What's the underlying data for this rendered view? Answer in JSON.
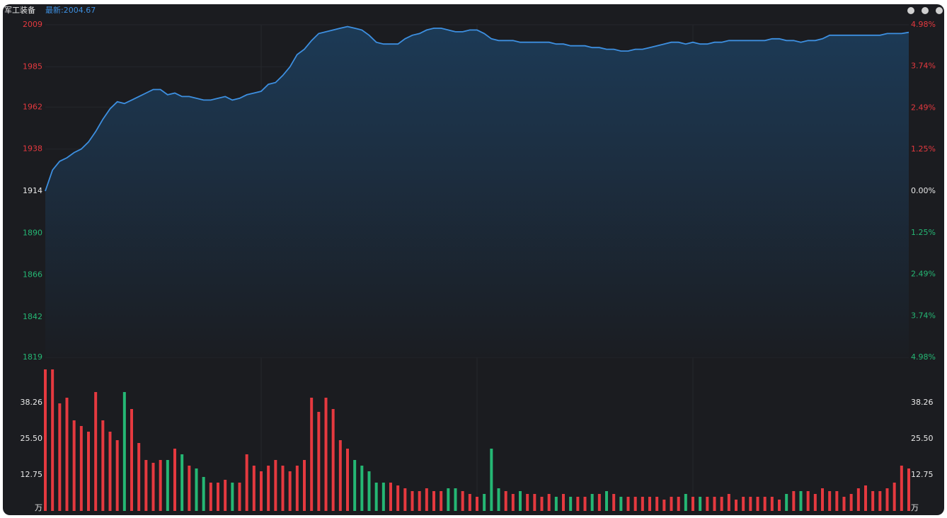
{
  "header": {
    "name": "军工装备",
    "latest": "最新:2004.67"
  },
  "chart_data": [
    {
      "type": "line",
      "color": "#3d8fe0",
      "up_color": "#e5393f",
      "down_color": "#25b774",
      "flat_color": "#e8e8e8",
      "ylim": [
        1819,
        2009
      ],
      "yticks": [
        2009,
        1985,
        1962,
        1938,
        1914,
        1890,
        1866,
        1842,
        1819
      ],
      "y2lim": [
        -4.98,
        4.98
      ],
      "y2ticks": [
        {
          "value": 4.98,
          "label": "4.98%"
        },
        {
          "value": 3.74,
          "label": "3.74%"
        },
        {
          "value": 2.49,
          "label": "2.49%"
        },
        {
          "value": 1.25,
          "label": "1.25%"
        },
        {
          "value": 0,
          "label": "0.00%"
        },
        {
          "value": -1.25,
          "label": "1.25%"
        },
        {
          "value": -2.49,
          "label": "2.49%"
        },
        {
          "value": -3.74,
          "label": "3.74%"
        },
        {
          "value": -4.98,
          "label": "4.98%"
        }
      ],
      "values": [
        1914,
        1926,
        1931,
        1933,
        1936,
        1938,
        1942,
        1948,
        1955,
        1961,
        1965,
        1964,
        1966,
        1968,
        1970,
        1972,
        1972,
        1969,
        1970,
        1968,
        1968,
        1967,
        1966,
        1966,
        1967,
        1968,
        1966,
        1967,
        1969,
        1970,
        1971,
        1975,
        1976,
        1980,
        1985,
        1992,
        1995,
        2000,
        2004,
        2005,
        2006,
        2007,
        2008,
        2007,
        2006,
        2003,
        1999,
        1998,
        1998,
        1998,
        2001,
        2003,
        2004,
        2006,
        2007,
        2007,
        2006,
        2005,
        2005,
        2006,
        2006,
        2004,
        2001,
        2000,
        2000,
        2000,
        1999,
        1999,
        1999,
        1999,
        1999,
        1998,
        1998,
        1997,
        1997,
        1997,
        1996,
        1996,
        1995,
        1995,
        1994,
        1994,
        1995,
        1995,
        1996,
        1997,
        1998,
        1999,
        1999,
        1998,
        1999,
        1998,
        1998,
        1999,
        1999,
        2000,
        2000,
        2000,
        2000,
        2000,
        2000,
        2001,
        2001,
        2000,
        2000,
        1999,
        2000,
        2000,
        2001,
        2003,
        2003,
        2003,
        2003,
        2003,
        2003,
        2003,
        2003,
        2004,
        2004,
        2004,
        2004.67
      ]
    },
    {
      "type": "bar",
      "up_color": "#e5393f",
      "down_color": "#25b774",
      "ylim": [
        0,
        53
      ],
      "yticks": [
        {
          "value": 38.26,
          "label": "38.26"
        },
        {
          "value": 25.5,
          "label": "25.50"
        },
        12.75,
        {
          "value": 0,
          "label": "万"
        }
      ],
      "values": [
        50,
        50,
        38,
        40,
        32,
        30,
        28,
        42,
        32,
        28,
        25,
        42,
        36,
        24,
        18,
        17,
        18,
        18,
        22,
        20,
        16,
        15,
        12,
        10,
        10,
        11,
        10,
        10,
        20,
        16,
        14,
        16,
        18,
        16,
        14,
        16,
        18,
        40,
        35,
        40,
        36,
        25,
        22,
        18,
        16,
        14,
        10,
        10,
        10,
        9,
        8,
        7,
        7,
        8,
        7,
        7,
        8,
        8,
        7,
        6,
        5,
        6,
        22,
        8,
        7,
        6,
        7,
        6,
        6,
        5,
        6,
        5,
        6,
        5,
        5,
        5,
        6,
        6,
        7,
        6,
        5,
        5,
        5,
        5,
        5,
        5,
        4,
        5,
        5,
        6,
        5,
        5,
        5,
        5,
        5,
        6,
        4,
        5,
        5,
        5,
        5,
        5,
        4,
        6,
        7,
        7,
        7,
        6,
        8,
        7,
        7,
        5,
        6,
        8,
        9,
        7,
        7,
        8,
        10,
        16,
        15
      ]
    }
  ]
}
